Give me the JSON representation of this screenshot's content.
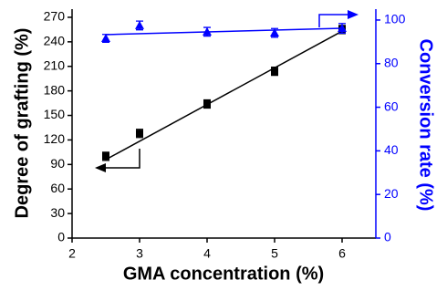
{
  "chart_data": {
    "type": "scatter",
    "x_label": "GMA concentration (%)",
    "y_label": "Degree of grafting (%)",
    "y2_label": "Conversion rate (%)",
    "x": [
      2.5,
      3,
      4,
      5,
      6
    ],
    "xlim": [
      2,
      6.5
    ],
    "xticks": [
      2,
      3,
      4,
      5,
      6
    ],
    "ylim": [
      0,
      280
    ],
    "yticks": [
      0,
      30,
      60,
      90,
      120,
      150,
      180,
      210,
      240,
      270
    ],
    "y2lim": [
      0,
      105
    ],
    "y2ticks": [
      0,
      20,
      40,
      60,
      80,
      100
    ],
    "fit_x": [
      2.5,
      6
    ],
    "series": [
      {
        "color": "#000000",
        "marker": "square",
        "values": [
          100,
          128,
          164,
          204,
          255
        ],
        "errors": [
          5,
          5,
          5,
          5,
          5
        ],
        "fit": [
          96,
          253
        ]
      },
      {
        "color": "#0000ff",
        "marker": "triangle",
        "axis": "y2",
        "values": [
          91.6,
          97.5,
          94.6,
          94.1,
          96.2
        ],
        "errors": [
          1.8,
          2,
          2,
          2,
          2.2
        ],
        "fit": [
          93.3,
          96.2
        ]
      }
    ]
  }
}
